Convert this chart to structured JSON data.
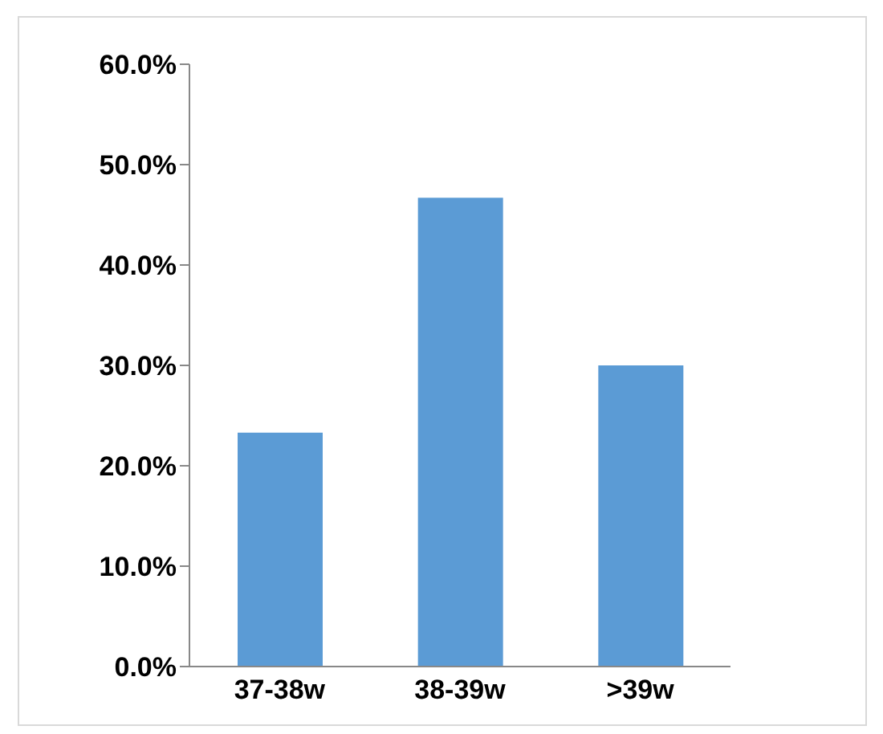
{
  "chart_data": {
    "type": "bar",
    "categories": [
      "37-38w",
      "38-39w",
      ">39w"
    ],
    "values": [
      23.3,
      46.7,
      30.0
    ],
    "color": "#5b9bd5",
    "ylim": [
      0,
      60
    ],
    "yticks": [
      {
        "value": 0,
        "label": "0.0%"
      },
      {
        "value": 10,
        "label": "10.0%"
      },
      {
        "value": 20,
        "label": "20.0%"
      },
      {
        "value": 30,
        "label": "30.0%"
      },
      {
        "value": 40,
        "label": "40.0%"
      },
      {
        "value": 50,
        "label": "50.0%"
      },
      {
        "value": 60,
        "label": "60.0%"
      }
    ],
    "grid": false,
    "legend": false
  }
}
